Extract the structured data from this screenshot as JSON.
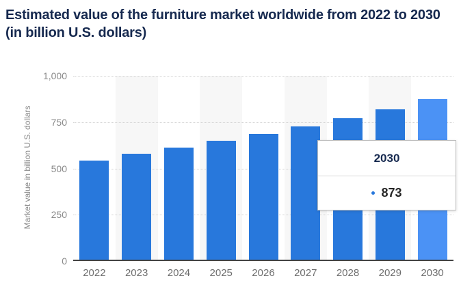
{
  "header": {
    "title": "Estimated value of the furniture market worldwide from 2022 to 2030 (in billion U.S. dollars)"
  },
  "chart_data": {
    "type": "bar",
    "title": "Estimated value of the furniture market worldwide from 2022 to 2030 (in billion U.S. dollars)",
    "xlabel": "",
    "ylabel": "Market value in billion U.S. dollars",
    "categories": [
      "2022",
      "2023",
      "2024",
      "2025",
      "2026",
      "2027",
      "2028",
      "2029",
      "2030"
    ],
    "values": [
      544,
      578,
      612,
      649,
      688,
      728,
      770,
      820,
      873
    ],
    "ylim": [
      0,
      1000
    ],
    "yticks": [
      0,
      250,
      500,
      750,
      1000
    ],
    "ytick_labels": [
      "0",
      "250",
      "500",
      "750",
      "1,000"
    ],
    "grid": "horizontal-dotted",
    "legend": "none",
    "highlighted_category": "2030",
    "colors": {
      "bar": "#2878dc",
      "bar_highlighted": "#4b92f5",
      "column_stripe": "#f7f7f7",
      "title_text": "#16294f",
      "axis_text": "#8a8a8a"
    }
  },
  "tooltip": {
    "title": "2030",
    "value": "873",
    "marker_color": "#2878dc"
  }
}
